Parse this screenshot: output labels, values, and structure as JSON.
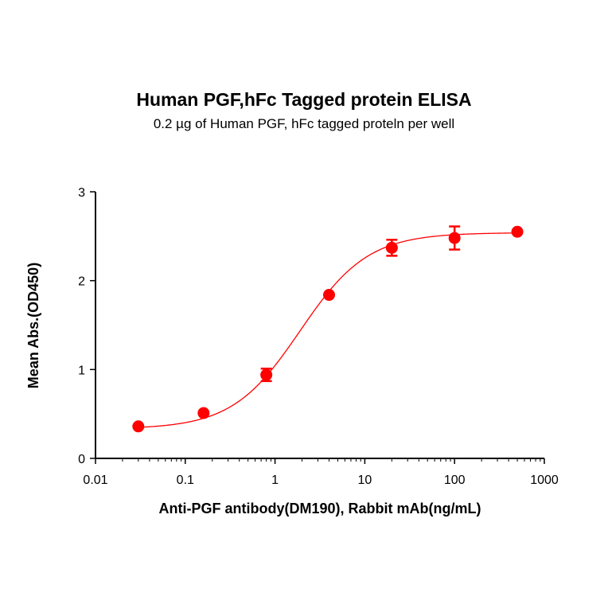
{
  "chart_data": {
    "type": "scatter",
    "title": "Human PGF,hFc Tagged protein ELISA",
    "subtitle": "0.2 µg of Human PGF, hFc tagged proteln per well",
    "xlabel": "Anti-PGF antibody(DM190), Rabbit mAb(ng/mL)",
    "ylabel": "Mean Abs.(OD450)",
    "xscale": "log",
    "xlim": [
      0.01,
      1000
    ],
    "ylim": [
      0,
      3
    ],
    "xticks": [
      "0.01",
      "0.1",
      "1",
      "10",
      "100",
      "1000"
    ],
    "yticks": [
      "0",
      "1",
      "2",
      "3"
    ],
    "grid": false,
    "legend": "none",
    "color": "#ff0000",
    "curve": "4-parameter logistic fit",
    "series": [
      {
        "x": [
          0.03,
          0.16,
          0.8,
          4,
          20,
          100,
          500
        ],
        "y": [
          0.36,
          0.51,
          0.94,
          1.84,
          2.37,
          2.48,
          2.55
        ],
        "error": [
          0.02,
          0.02,
          0.07,
          0.02,
          0.09,
          0.13,
          0.02
        ]
      }
    ]
  }
}
